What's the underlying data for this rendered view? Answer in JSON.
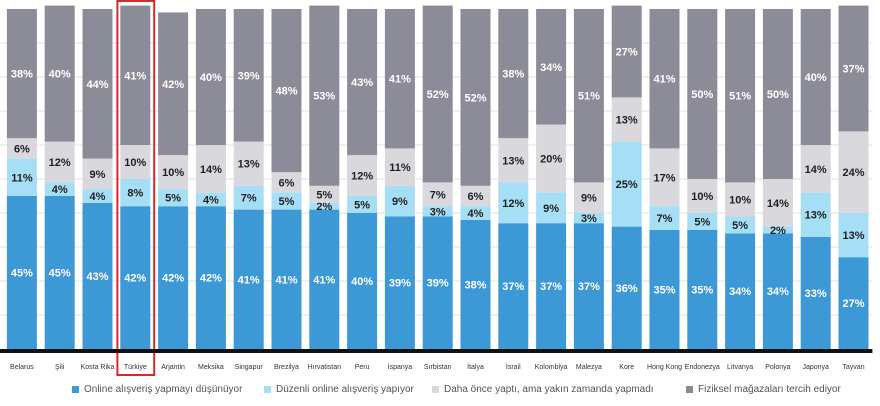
{
  "chart_data": {
    "type": "bar",
    "stacked": true,
    "percent": true,
    "ylim": [
      0,
      100
    ],
    "grid": true,
    "legend_position": "bottom",
    "highlight_category": "Türkiye",
    "highlight_color": "#d62a2a",
    "categories": [
      "Belarus",
      "Şili",
      "Kosta Rika",
      "Türkiye",
      "Arjantin",
      "Meksika",
      "Singapur",
      "Brezilya",
      "Hırvatistan",
      "Peru",
      "İspanya",
      "Sırbistan",
      "İtalya",
      "İsrail",
      "Kolombiya",
      "Malezya",
      "Kore",
      "Hong Kong",
      "Endonezya",
      "Litvanya",
      "Polonya",
      "Japonya",
      "Tayvan"
    ],
    "series": [
      {
        "name": "Online alışveriş yapmayı düşünüyor",
        "color": "#3d98d6",
        "values": [
          45,
          45,
          43,
          42,
          42,
          42,
          41,
          41,
          41,
          40,
          39,
          39,
          38,
          37,
          37,
          37,
          36,
          35,
          35,
          34,
          34,
          33,
          27
        ]
      },
      {
        "name": "Düzenli online alışveriş yapıyor",
        "color": "#a6def6",
        "values": [
          11,
          4,
          4,
          8,
          5,
          4,
          7,
          5,
          2,
          5,
          9,
          3,
          4,
          12,
          9,
          3,
          25,
          7,
          5,
          5,
          2,
          13,
          13
        ]
      },
      {
        "name": "Daha önce yaptı, ama yakın zamanda yapmadı",
        "color": "#d9d9dd",
        "values": [
          6,
          12,
          9,
          10,
          10,
          14,
          13,
          6,
          5,
          12,
          11,
          7,
          6,
          13,
          20,
          9,
          13,
          17,
          10,
          10,
          14,
          14,
          24
        ]
      },
      {
        "name": "Fiziksel mağazaları tercih ediyor",
        "color": "#8c8c98",
        "values": [
          38,
          40,
          44,
          41,
          42,
          40,
          39,
          48,
          53,
          43,
          41,
          52,
          52,
          38,
          34,
          51,
          27,
          41,
          50,
          51,
          50,
          40,
          37
        ]
      }
    ]
  }
}
